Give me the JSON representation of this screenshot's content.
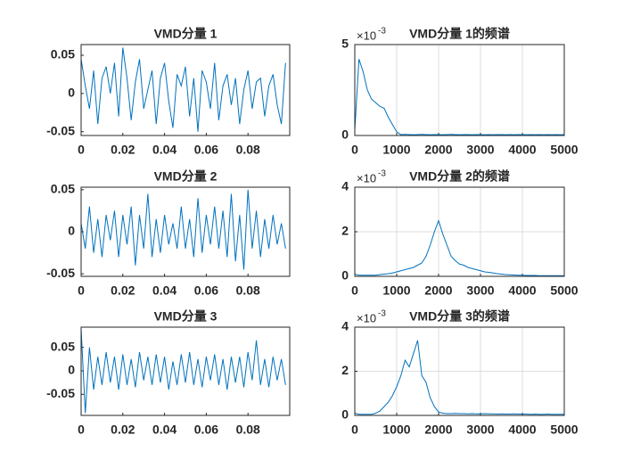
{
  "chart_data": [
    {
      "type": "line",
      "title": "VMD分量 1",
      "xlim": [
        0,
        0.1
      ],
      "xticks": [
        0,
        0.02,
        0.04,
        0.06,
        0.08
      ],
      "ylim": [
        -0.055,
        0.064
      ],
      "yticks": [
        -0.05,
        0,
        0.05
      ],
      "grid": false,
      "x": [
        0,
        0.002,
        0.004,
        0.006,
        0.008,
        0.01,
        0.012,
        0.014,
        0.016,
        0.018,
        0.02,
        0.022,
        0.024,
        0.026,
        0.028,
        0.03,
        0.032,
        0.034,
        0.036,
        0.038,
        0.04,
        0.042,
        0.044,
        0.046,
        0.048,
        0.05,
        0.052,
        0.054,
        0.056,
        0.058,
        0.06,
        0.062,
        0.064,
        0.066,
        0.068,
        0.07,
        0.072,
        0.074,
        0.076,
        0.078,
        0.08,
        0.082,
        0.084,
        0.086,
        0.088,
        0.09,
        0.092,
        0.094,
        0.096,
        0.098
      ],
      "series": [
        {
          "color": "#0072bd",
          "values": [
            0.045,
            0.01,
            -0.02,
            0.03,
            -0.04,
            0.02,
            0.035,
            0.0,
            0.04,
            -0.03,
            0.06,
            0.02,
            -0.035,
            0.015,
            0.045,
            -0.02,
            0.005,
            0.03,
            -0.04,
            0.02,
            0.04,
            -0.01,
            -0.045,
            0.025,
            0.01,
            0.035,
            -0.03,
            0.02,
            -0.05,
            0.03,
            0.015,
            -0.02,
            0.04,
            -0.035,
            0.01,
            0.025,
            -0.015,
            0.02,
            -0.04,
            0.005,
            0.03,
            -0.02,
            0.015,
            0.02,
            -0.03,
            0.01,
            0.025,
            -0.015,
            -0.04,
            0.04
          ]
        }
      ]
    },
    {
      "type": "line",
      "title": "VMD分量 1的频谱",
      "y_offset_base": "×10",
      "y_offset_exponent": "-3",
      "xlim": [
        0,
        5000
      ],
      "xticks": [
        0,
        1000,
        2000,
        3000,
        4000,
        5000
      ],
      "ylim": [
        0,
        5
      ],
      "yticks": [
        0,
        5
      ],
      "grid": true,
      "x": [
        0,
        100,
        200,
        300,
        400,
        500,
        600,
        700,
        800,
        900,
        1000,
        1100,
        1200,
        1300,
        1400,
        1500,
        1600,
        1700,
        1800,
        1900,
        2000,
        2100,
        2200,
        2300,
        2400,
        2500,
        2600,
        2700,
        2800,
        2900,
        3000,
        3100,
        3200,
        3300,
        3400,
        3500,
        3600,
        3700,
        3800,
        3900,
        4000,
        4100,
        4200,
        4300,
        4400,
        4500,
        4600,
        4700,
        4800,
        4900,
        5000
      ],
      "series": [
        {
          "color": "#0072bd",
          "values": [
            0.3,
            4.2,
            3.5,
            2.5,
            2.0,
            1.8,
            1.6,
            1.5,
            1.0,
            0.6,
            0.2,
            0.05,
            0.06,
            0.05,
            0.04,
            0.05,
            0.06,
            0.05,
            0.04,
            0.05,
            0.05,
            0.04,
            0.05,
            0.06,
            0.05,
            0.04,
            0.05,
            0.05,
            0.04,
            0.05,
            0.05,
            0.04,
            0.05,
            0.04,
            0.05,
            0.05,
            0.04,
            0.05,
            0.04,
            0.05,
            0.05,
            0.04,
            0.05,
            0.04,
            0.05,
            0.04,
            0.05,
            0.04,
            0.05,
            0.04,
            0.05
          ]
        }
      ]
    },
    {
      "type": "line",
      "title": "VMD分量 2",
      "xlim": [
        0,
        0.1
      ],
      "xticks": [
        0,
        0.02,
        0.04,
        0.06,
        0.08
      ],
      "ylim": [
        -0.053,
        0.053
      ],
      "yticks": [
        -0.05,
        0,
        0.05
      ],
      "grid": false,
      "x": [
        0,
        0.002,
        0.004,
        0.006,
        0.008,
        0.01,
        0.012,
        0.014,
        0.016,
        0.018,
        0.02,
        0.022,
        0.024,
        0.026,
        0.028,
        0.03,
        0.032,
        0.034,
        0.036,
        0.038,
        0.04,
        0.042,
        0.044,
        0.046,
        0.048,
        0.05,
        0.052,
        0.054,
        0.056,
        0.058,
        0.06,
        0.062,
        0.064,
        0.066,
        0.068,
        0.07,
        0.072,
        0.074,
        0.076,
        0.078,
        0.08,
        0.082,
        0.084,
        0.086,
        0.088,
        0.09,
        0.092,
        0.094,
        0.096,
        0.098
      ],
      "series": [
        {
          "color": "#0072bd",
          "values": [
            0.01,
            -0.02,
            0.03,
            -0.025,
            0.015,
            -0.03,
            0.02,
            -0.01,
            0.025,
            -0.03,
            0.02,
            -0.015,
            0.03,
            -0.04,
            0.02,
            -0.02,
            0.045,
            -0.03,
            0.015,
            -0.025,
            0.02,
            -0.015,
            0.01,
            -0.02,
            0.03,
            -0.02,
            0.015,
            -0.03,
            0.04,
            -0.025,
            0.02,
            -0.015,
            0.03,
            -0.02,
            0.025,
            -0.03,
            0.045,
            -0.035,
            0.02,
            -0.045,
            0.05,
            -0.02,
            0.025,
            -0.03,
            0.015,
            -0.02,
            0.02,
            -0.015,
            0.01,
            -0.02
          ]
        }
      ]
    },
    {
      "type": "line",
      "title": "VMD分量 2的频谱",
      "y_offset_base": "×10",
      "y_offset_exponent": "-3",
      "xlim": [
        0,
        5000
      ],
      "xticks": [
        0,
        1000,
        2000,
        3000,
        4000,
        5000
      ],
      "ylim": [
        0,
        4
      ],
      "yticks": [
        0,
        2,
        4
      ],
      "grid": true,
      "x": [
        0,
        100,
        200,
        300,
        400,
        500,
        600,
        700,
        800,
        900,
        1000,
        1100,
        1200,
        1300,
        1400,
        1500,
        1600,
        1700,
        1800,
        1900,
        2000,
        2100,
        2200,
        2300,
        2400,
        2500,
        2600,
        2700,
        2800,
        2900,
        3000,
        3100,
        3200,
        3300,
        3400,
        3500,
        3600,
        3700,
        3800,
        3900,
        4000,
        4100,
        4200,
        4300,
        4400,
        4500,
        4600,
        4700,
        4800,
        4900,
        5000
      ],
      "series": [
        {
          "color": "#0072bd",
          "values": [
            0.1,
            0.05,
            0.05,
            0.05,
            0.05,
            0.05,
            0.08,
            0.1,
            0.12,
            0.15,
            0.2,
            0.25,
            0.3,
            0.35,
            0.4,
            0.5,
            0.6,
            0.9,
            1.4,
            2.0,
            2.5,
            1.9,
            1.4,
            0.9,
            0.7,
            0.55,
            0.5,
            0.4,
            0.35,
            0.3,
            0.25,
            0.2,
            0.18,
            0.15,
            0.12,
            0.1,
            0.08,
            0.07,
            0.06,
            0.05,
            0.05,
            0.04,
            0.04,
            0.04,
            0.03,
            0.03,
            0.03,
            0.03,
            0.03,
            0.03,
            0.03
          ]
        }
      ]
    },
    {
      "type": "line",
      "title": "VMD分量 3",
      "xlim": [
        0,
        0.1
      ],
      "xticks": [
        0,
        0.02,
        0.04,
        0.06,
        0.08
      ],
      "ylim": [
        -0.095,
        0.093
      ],
      "yticks": [
        -0.05,
        0,
        0.05
      ],
      "grid": false,
      "x": [
        0,
        0.002,
        0.004,
        0.006,
        0.008,
        0.01,
        0.012,
        0.014,
        0.016,
        0.018,
        0.02,
        0.022,
        0.024,
        0.026,
        0.028,
        0.03,
        0.032,
        0.034,
        0.036,
        0.038,
        0.04,
        0.042,
        0.044,
        0.046,
        0.048,
        0.05,
        0.052,
        0.054,
        0.056,
        0.058,
        0.06,
        0.062,
        0.064,
        0.066,
        0.068,
        0.07,
        0.072,
        0.074,
        0.076,
        0.078,
        0.08,
        0.082,
        0.084,
        0.086,
        0.088,
        0.09,
        0.092,
        0.094,
        0.096,
        0.098
      ],
      "series": [
        {
          "color": "#0072bd",
          "values": [
            0.09,
            -0.09,
            0.05,
            -0.04,
            0.03,
            -0.03,
            0.04,
            -0.025,
            0.03,
            -0.04,
            0.035,
            -0.03,
            0.025,
            -0.035,
            0.04,
            -0.02,
            0.03,
            -0.03,
            0.035,
            -0.025,
            0.03,
            -0.04,
            0.02,
            -0.03,
            0.035,
            -0.025,
            0.04,
            -0.03,
            0.025,
            -0.035,
            0.03,
            -0.02,
            0.035,
            -0.03,
            0.025,
            -0.04,
            0.03,
            -0.025,
            0.03,
            -0.035,
            0.04,
            -0.02,
            0.065,
            -0.03,
            0.025,
            -0.035,
            0.03,
            -0.02,
            0.025,
            -0.03
          ]
        }
      ]
    },
    {
      "type": "line",
      "title": "VMD分量 3的频谱",
      "y_offset_base": "×10",
      "y_offset_exponent": "-3",
      "xlim": [
        0,
        5000
      ],
      "xticks": [
        0,
        1000,
        2000,
        3000,
        4000,
        5000
      ],
      "ylim": [
        0,
        4
      ],
      "yticks": [
        0,
        2,
        4
      ],
      "grid": true,
      "x": [
        0,
        100,
        200,
        300,
        400,
        500,
        600,
        700,
        800,
        900,
        1000,
        1100,
        1200,
        1300,
        1400,
        1500,
        1600,
        1700,
        1800,
        1900,
        2000,
        2100,
        2200,
        2300,
        2400,
        2500,
        2600,
        2700,
        2800,
        2900,
        3000,
        3100,
        3200,
        3300,
        3400,
        3500,
        3600,
        3700,
        3800,
        3900,
        4000,
        4100,
        4200,
        4300,
        4400,
        4500,
        4600,
        4700,
        4800,
        4900,
        5000
      ],
      "series": [
        {
          "color": "#0072bd",
          "values": [
            0.1,
            0.05,
            0.05,
            0.05,
            0.05,
            0.1,
            0.2,
            0.4,
            0.6,
            0.9,
            1.3,
            1.8,
            2.5,
            2.2,
            2.8,
            3.4,
            1.8,
            1.5,
            0.8,
            0.4,
            0.15,
            0.1,
            0.08,
            0.08,
            0.09,
            0.08,
            0.08,
            0.07,
            0.08,
            0.07,
            0.07,
            0.08,
            0.07,
            0.07,
            0.06,
            0.07,
            0.06,
            0.06,
            0.07,
            0.06,
            0.06,
            0.06,
            0.05,
            0.06,
            0.05,
            0.05,
            0.06,
            0.05,
            0.05,
            0.05,
            0.05
          ]
        }
      ]
    }
  ]
}
